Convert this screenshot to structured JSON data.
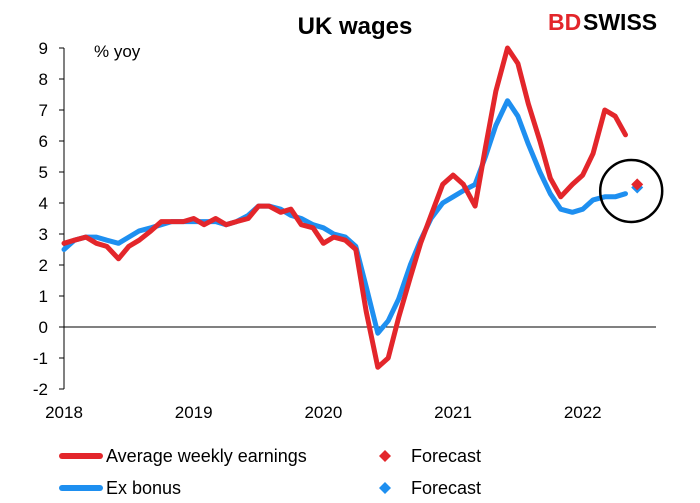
{
  "logo": {
    "part1": "BD",
    "part2": "SWISS"
  },
  "colors": {
    "red": "#e3262b",
    "blue": "#1e8ff0",
    "axis": "#000000"
  },
  "chart_data": {
    "type": "line",
    "title": "UK wages",
    "ylabel": "% yoy",
    "ylim": [
      -2,
      9
    ],
    "yticks": [
      "9",
      "8",
      "7",
      "6",
      "5",
      "4",
      "3",
      "2",
      "1",
      "0",
      "-1",
      "-2"
    ],
    "xlim": [
      2018.0,
      2022.75
    ],
    "xticks": [
      {
        "label": "2018",
        "value": 2018
      },
      {
        "label": "2019",
        "value": 2019
      },
      {
        "label": "2020",
        "value": 2020
      },
      {
        "label": "2021",
        "value": 2021
      },
      {
        "label": "2022",
        "value": 2022
      }
    ],
    "grid": false,
    "legend_position": "bottom",
    "series": [
      {
        "name": "Average weekly earnings",
        "kind": "line",
        "color": "#e3262b",
        "points": [
          [
            2018.0,
            2.7
          ],
          [
            2018.08,
            2.8
          ],
          [
            2018.17,
            2.9
          ],
          [
            2018.25,
            2.7
          ],
          [
            2018.33,
            2.6
          ],
          [
            2018.42,
            2.2
          ],
          [
            2018.5,
            2.6
          ],
          [
            2018.58,
            2.8
          ],
          [
            2018.67,
            3.1
          ],
          [
            2018.75,
            3.4
          ],
          [
            2018.83,
            3.4
          ],
          [
            2018.92,
            3.4
          ],
          [
            2019.0,
            3.5
          ],
          [
            2019.08,
            3.3
          ],
          [
            2019.17,
            3.5
          ],
          [
            2019.25,
            3.3
          ],
          [
            2019.33,
            3.4
          ],
          [
            2019.42,
            3.5
          ],
          [
            2019.5,
            3.9
          ],
          [
            2019.58,
            3.9
          ],
          [
            2019.67,
            3.7
          ],
          [
            2019.75,
            3.8
          ],
          [
            2019.83,
            3.3
          ],
          [
            2019.92,
            3.2
          ],
          [
            2020.0,
            2.7
          ],
          [
            2020.08,
            2.9
          ],
          [
            2020.17,
            2.8
          ],
          [
            2020.25,
            2.5
          ],
          [
            2020.33,
            0.5
          ],
          [
            2020.42,
            -1.3
          ],
          [
            2020.5,
            -1.0
          ],
          [
            2020.58,
            0.3
          ],
          [
            2020.67,
            1.6
          ],
          [
            2020.75,
            2.7
          ],
          [
            2020.83,
            3.6
          ],
          [
            2020.92,
            4.6
          ],
          [
            2021.0,
            4.9
          ],
          [
            2021.08,
            4.6
          ],
          [
            2021.17,
            3.9
          ],
          [
            2021.25,
            5.8
          ],
          [
            2021.33,
            7.6
          ],
          [
            2021.42,
            9.0
          ],
          [
            2021.5,
            8.5
          ],
          [
            2021.58,
            7.2
          ],
          [
            2021.67,
            6.0
          ],
          [
            2021.75,
            4.8
          ],
          [
            2021.83,
            4.2
          ],
          [
            2021.92,
            4.6
          ],
          [
            2022.0,
            4.9
          ],
          [
            2022.08,
            5.6
          ],
          [
            2022.17,
            7.0
          ],
          [
            2022.25,
            6.8
          ],
          [
            2022.33,
            6.2
          ]
        ]
      },
      {
        "name": "Ex bonus",
        "kind": "line",
        "color": "#1e8ff0",
        "points": [
          [
            2018.0,
            2.5
          ],
          [
            2018.08,
            2.8
          ],
          [
            2018.17,
            2.9
          ],
          [
            2018.25,
            2.9
          ],
          [
            2018.33,
            2.8
          ],
          [
            2018.42,
            2.7
          ],
          [
            2018.5,
            2.9
          ],
          [
            2018.58,
            3.1
          ],
          [
            2018.67,
            3.2
          ],
          [
            2018.75,
            3.3
          ],
          [
            2018.83,
            3.4
          ],
          [
            2018.92,
            3.4
          ],
          [
            2019.0,
            3.4
          ],
          [
            2019.08,
            3.4
          ],
          [
            2019.17,
            3.4
          ],
          [
            2019.25,
            3.3
          ],
          [
            2019.33,
            3.4
          ],
          [
            2019.42,
            3.6
          ],
          [
            2019.5,
            3.9
          ],
          [
            2019.58,
            3.9
          ],
          [
            2019.67,
            3.8
          ],
          [
            2019.75,
            3.6
          ],
          [
            2019.83,
            3.5
          ],
          [
            2019.92,
            3.3
          ],
          [
            2020.0,
            3.2
          ],
          [
            2020.08,
            3.0
          ],
          [
            2020.17,
            2.9
          ],
          [
            2020.25,
            2.6
          ],
          [
            2020.33,
            1.3
          ],
          [
            2020.42,
            -0.2
          ],
          [
            2020.5,
            0.2
          ],
          [
            2020.58,
            0.9
          ],
          [
            2020.67,
            2.0
          ],
          [
            2020.75,
            2.8
          ],
          [
            2020.83,
            3.5
          ],
          [
            2020.92,
            4.0
          ],
          [
            2021.0,
            4.2
          ],
          [
            2021.08,
            4.4
          ],
          [
            2021.17,
            4.6
          ],
          [
            2021.25,
            5.5
          ],
          [
            2021.33,
            6.5
          ],
          [
            2021.42,
            7.3
          ],
          [
            2021.5,
            6.8
          ],
          [
            2021.58,
            5.9
          ],
          [
            2021.67,
            5.0
          ],
          [
            2021.75,
            4.3
          ],
          [
            2021.83,
            3.8
          ],
          [
            2021.92,
            3.7
          ],
          [
            2022.0,
            3.8
          ],
          [
            2022.08,
            4.1
          ],
          [
            2022.17,
            4.2
          ],
          [
            2022.25,
            4.2
          ],
          [
            2022.33,
            4.3
          ]
        ]
      },
      {
        "name": "Forecast",
        "kind": "marker",
        "color": "#e3262b",
        "points": [
          [
            2022.42,
            4.6
          ]
        ]
      },
      {
        "name": "Forecast",
        "kind": "marker",
        "color": "#1e8ff0",
        "points": [
          [
            2022.42,
            4.5
          ]
        ]
      }
    ],
    "annotation": {
      "type": "circle",
      "center": [
        2022.42,
        4.55
      ],
      "radius": 1.0
    }
  }
}
